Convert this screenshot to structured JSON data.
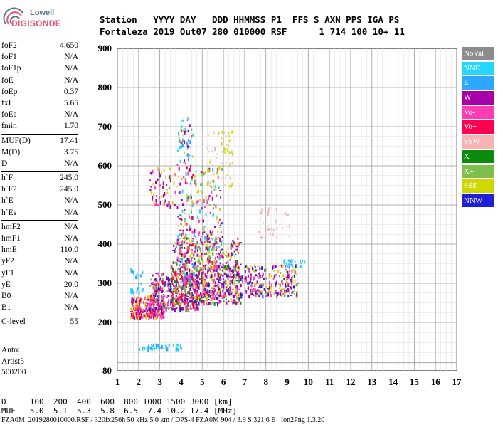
{
  "logo": {
    "line1": "Lowell",
    "line2": "DIGISONDE"
  },
  "header": {
    "labels": "Station   YYYY DAY   DDD HHMMSS P1  FFS S AXN PPS IGA PS",
    "values": "Fortaleza 2019 Out07 280 010000 RSF      1 714 100 10+ 11"
  },
  "params": {
    "group1": [
      {
        "name": "foF2",
        "value": "4.650"
      },
      {
        "name": "foF1",
        "value": "N/A"
      },
      {
        "name": "foF1p",
        "value": "N/A"
      },
      {
        "name": "foE",
        "value": "N/A"
      },
      {
        "name": "foEp",
        "value": "0.37"
      },
      {
        "name": "fxI",
        "value": "5.65"
      },
      {
        "name": "foEs",
        "value": "N/A"
      },
      {
        "name": "fmin",
        "value": "1.70"
      }
    ],
    "group2": [
      {
        "name": "MUF(D)",
        "value": "17.41"
      },
      {
        "name": "M(D)",
        "value": "3.75"
      },
      {
        "name": "D",
        "value": "N/A"
      }
    ],
    "group3": [
      {
        "name": "h`F",
        "value": "245.0"
      },
      {
        "name": "h`F2",
        "value": "245.0"
      },
      {
        "name": "h`E",
        "value": "N/A"
      },
      {
        "name": "h`Es",
        "value": "N/A"
      }
    ],
    "group4": [
      {
        "name": "hmF2",
        "value": "N/A"
      },
      {
        "name": "hmF1",
        "value": "N/A"
      },
      {
        "name": "hmE",
        "value": "110.0"
      },
      {
        "name": "yF2",
        "value": "N/A"
      },
      {
        "name": "yF1",
        "value": "N/A"
      },
      {
        "name": "yE",
        "value": "20.0"
      },
      {
        "name": "B0",
        "value": "N/A"
      },
      {
        "name": "B1",
        "value": "N/A"
      }
    ],
    "group5": [
      {
        "name": "C-level",
        "value": "55"
      }
    ]
  },
  "auto": {
    "line1": "Auto:",
    "line2": "Artist5",
    "line3": "500200"
  },
  "legend": [
    {
      "label": "NoVal",
      "color": "#8c8c8c"
    },
    {
      "label": "NNE",
      "color": "#22d8ff"
    },
    {
      "label": "E",
      "color": "#2ea8ff"
    },
    {
      "label": "W",
      "color": "#a800a8"
    },
    {
      "label": "Vo-",
      "color": "#ff3cb4"
    },
    {
      "label": "Vo+",
      "color": "#ff0050"
    },
    {
      "label": "SSW",
      "color": "#f8b4b4"
    },
    {
      "label": "X-",
      "color": "#0c8c0c"
    },
    {
      "label": "X+",
      "color": "#7ebe4c"
    },
    {
      "label": "SSE",
      "color": "#cfd800"
    },
    {
      "label": "NNW",
      "color": "#2020d8"
    }
  ],
  "chart_data": {
    "type": "scatter",
    "xlim": [
      1,
      17
    ],
    "ylim": [
      80,
      900
    ],
    "x_ticks": [
      "1",
      "2",
      "3",
      "4",
      "5",
      "6",
      "7",
      "8",
      "9",
      "10",
      "11",
      "12",
      "13",
      "14",
      "15",
      "16",
      "17"
    ],
    "y_ticks": [
      "80",
      "200",
      "300",
      "400",
      "500",
      "600",
      "700",
      "800",
      "900"
    ],
    "grid": true,
    "clusters": [
      {
        "x_range": [
          1.6,
          3.2
        ],
        "y_range": [
          215,
          270
        ],
        "colors": [
          "#a800a8",
          "#ff0050",
          "#ff3cb4",
          "#cfd800"
        ],
        "n": 260
      },
      {
        "x_range": [
          2.5,
          4.8
        ],
        "y_range": [
          235,
          330
        ],
        "colors": [
          "#a800a8",
          "#ff0050",
          "#ff3cb4",
          "#2020d8",
          "#7ebe4c"
        ],
        "n": 380
      },
      {
        "x_range": [
          3.5,
          6.8
        ],
        "y_range": [
          250,
          420
        ],
        "colors": [
          "#a800a8",
          "#ff0050",
          "#ff3cb4",
          "#cfd800",
          "#2020d8",
          "#0c8c0c"
        ],
        "n": 520
      },
      {
        "x_range": [
          5.0,
          9.5
        ],
        "y_range": [
          270,
          350
        ],
        "colors": [
          "#cfd800",
          "#ff3cb4",
          "#a800a8",
          "#2020d8"
        ],
        "n": 420
      },
      {
        "x_range": [
          3.8,
          4.6
        ],
        "y_range": [
          300,
          700
        ],
        "colors": [
          "#a800a8",
          "#ff0050",
          "#ff3cb4",
          "#22d8ff",
          "#2ea8ff",
          "#cfd800"
        ],
        "n": 200
      },
      {
        "x_range": [
          4.6,
          5.9
        ],
        "y_range": [
          340,
          600
        ],
        "colors": [
          "#a800a8",
          "#ff3cb4",
          "#22d8ff",
          "#cfd800",
          "#7ebe4c"
        ],
        "n": 180
      },
      {
        "x_range": [
          2.5,
          3.8
        ],
        "y_range": [
          500,
          600
        ],
        "colors": [
          "#cfd800",
          "#a800a8",
          "#ff3cb4"
        ],
        "n": 60
      },
      {
        "x_range": [
          5.2,
          6.4
        ],
        "y_range": [
          550,
          690
        ],
        "colors": [
          "#cfd800",
          "#f8b4b4"
        ],
        "n": 60
      },
      {
        "x_range": [
          7.6,
          9.1
        ],
        "y_range": [
          420,
          500
        ],
        "colors": [
          "#f8b4b4"
        ],
        "n": 30
      },
      {
        "x_range": [
          8.8,
          9.8
        ],
        "y_range": [
          345,
          365
        ],
        "colors": [
          "#22d8ff",
          "#2ea8ff"
        ],
        "n": 25
      },
      {
        "x_range": [
          2.0,
          4.0
        ],
        "y_range": [
          136,
          148
        ],
        "colors": [
          "#22d8ff",
          "#2ea8ff"
        ],
        "n": 45
      },
      {
        "x_range": [
          1.6,
          2.2
        ],
        "y_range": [
          280,
          340
        ],
        "colors": [
          "#2ea8ff",
          "#22d8ff"
        ],
        "n": 25
      },
      {
        "x_range": [
          3.8,
          4.4
        ],
        "y_range": [
          650,
          730
        ],
        "colors": [
          "#22d8ff",
          "#2ea8ff",
          "#a800a8"
        ],
        "n": 25
      }
    ]
  },
  "footer": {
    "line1": "D     100  200  400  600  800 1000 1500 3000 [km]",
    "line2": "MUF   5.0  5.1  5.3  5.8  6.5  7.4 10.2 17.4 [MHz]",
    "line3": "FZA0M_2019280010000.RSF / 320fx256h 50 kHz 5.0 km / DPS-4 FZA0M 904 / 3.9 S 321.6 E   Ion2Png 1.3.20"
  }
}
